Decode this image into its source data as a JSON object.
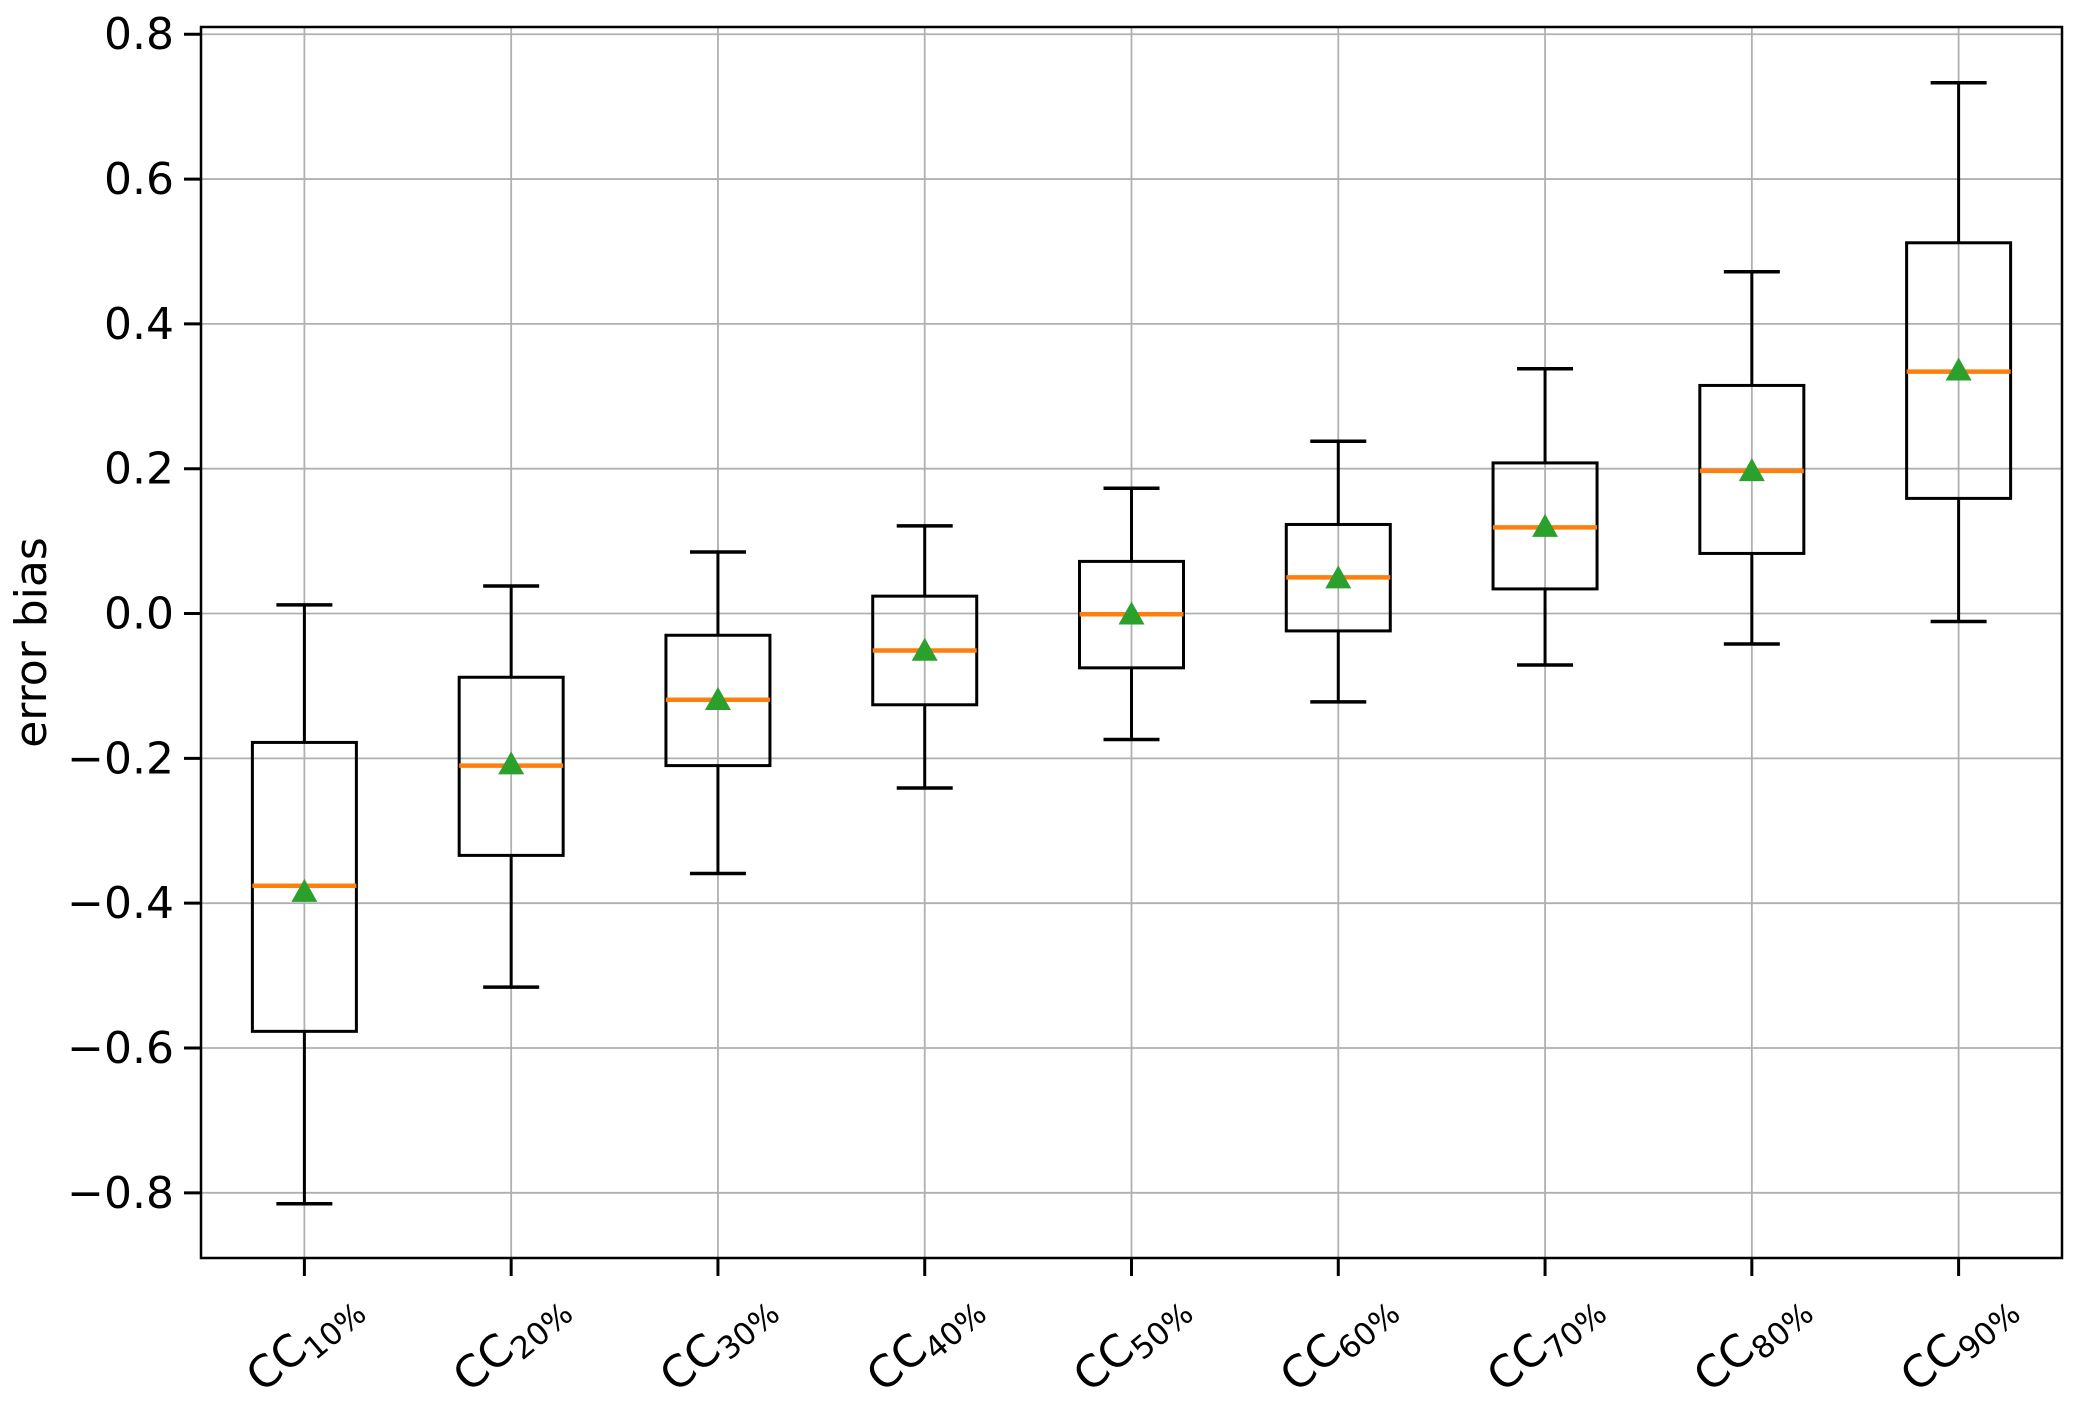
{
  "figure": {
    "background": "#ffffff"
  },
  "chart_data": {
    "type": "boxplot",
    "title": "",
    "xlabel": "",
    "ylabel": "error bias",
    "ylim": [
      -0.89,
      0.81
    ],
    "grid": true,
    "legend": "none",
    "colors": {
      "box_line": "#000000",
      "median": "#ff7f0e",
      "mean_marker": "#2ca02c",
      "grid": "#b0b0b0",
      "axis": "#000000"
    },
    "yticks": [
      {
        "label": "0.8",
        "value": 0.8
      },
      {
        "label": "0.6",
        "value": 0.6
      },
      {
        "label": "0.4",
        "value": 0.4
      },
      {
        "label": "0.2",
        "value": 0.2
      },
      {
        "label": "0.0",
        "value": 0.0
      },
      {
        "label": "−0.2",
        "value": -0.2
      },
      {
        "label": "−0.4",
        "value": -0.4
      },
      {
        "label": "−0.6",
        "value": -0.6
      },
      {
        "label": "−0.8",
        "value": -0.8
      }
    ],
    "category_prefix": "CC",
    "boxes": [
      {
        "category": "CC10%",
        "subscript": "10%",
        "whisker_low": -0.815,
        "q1": -0.577,
        "median": -0.376,
        "q3": -0.178,
        "whisker_high": 0.012,
        "mean": -0.383
      },
      {
        "category": "CC20%",
        "subscript": "20%",
        "whisker_low": -0.516,
        "q1": -0.334,
        "median": -0.21,
        "q3": -0.088,
        "whisker_high": 0.038,
        "mean": -0.207
      },
      {
        "category": "CC30%",
        "subscript": "30%",
        "whisker_low": -0.359,
        "q1": -0.21,
        "median": -0.119,
        "q3": -0.03,
        "whisker_high": 0.085,
        "mean": -0.118
      },
      {
        "category": "CC40%",
        "subscript": "40%",
        "whisker_low": -0.241,
        "q1": -0.126,
        "median": -0.051,
        "q3": 0.024,
        "whisker_high": 0.121,
        "mean": -0.05
      },
      {
        "category": "CC50%",
        "subscript": "50%",
        "whisker_low": -0.174,
        "q1": -0.075,
        "median": -0.001,
        "q3": 0.072,
        "whisker_high": 0.173,
        "mean": 0.0
      },
      {
        "category": "CC60%",
        "subscript": "60%",
        "whisker_low": -0.122,
        "q1": -0.024,
        "median": 0.05,
        "q3": 0.123,
        "whisker_high": 0.238,
        "mean": 0.05
      },
      {
        "category": "CC70%",
        "subscript": "70%",
        "whisker_low": -0.071,
        "q1": 0.034,
        "median": 0.119,
        "q3": 0.208,
        "whisker_high": 0.338,
        "mean": 0.121
      },
      {
        "category": "CC80%",
        "subscript": "80%",
        "whisker_low": -0.042,
        "q1": 0.083,
        "median": 0.197,
        "q3": 0.315,
        "whisker_high": 0.472,
        "mean": 0.198
      },
      {
        "category": "CC90%",
        "subscript": "90%",
        "whisker_low": -0.011,
        "q1": 0.159,
        "median": 0.334,
        "q3": 0.512,
        "whisker_high": 0.733,
        "mean": 0.337
      }
    ]
  }
}
